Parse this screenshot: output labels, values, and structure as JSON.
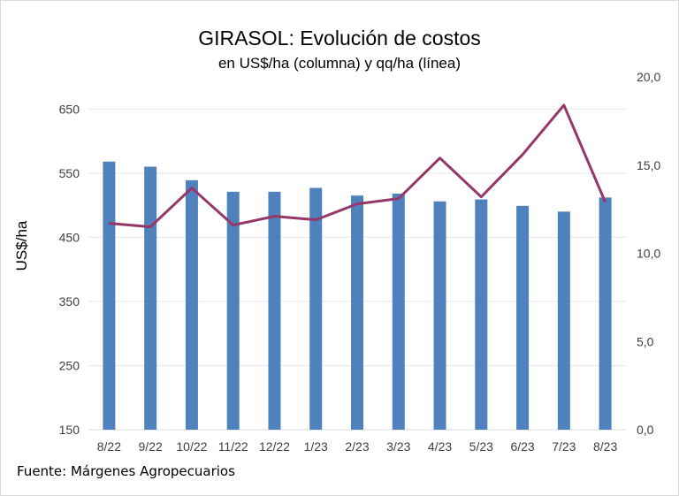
{
  "chart_data": {
    "type": "bar+line",
    "title": "GIRASOL: Evolución de costos",
    "subtitle": "en US$/ha (columna) y qq/ha (línea)",
    "ylabel": "US$/ha",
    "source": "Fuente: Márgenes Agropecuarios",
    "categories": [
      "8/22",
      "9/22",
      "10/22",
      "11/22",
      "12/22",
      "1/23",
      "2/23",
      "3/23",
      "4/23",
      "5/23",
      "6/23",
      "7/23",
      "8/23"
    ],
    "series": [
      {
        "type": "bar",
        "axis": "left",
        "values": [
          568,
          560,
          539,
          521,
          521,
          527,
          515,
          518,
          506,
          509,
          499,
          490,
          512
        ]
      },
      {
        "type": "line",
        "axis": "right",
        "values": [
          11.7,
          11.5,
          13.7,
          11.6,
          12.1,
          11.9,
          12.8,
          13.1,
          15.4,
          13.2,
          15.6,
          18.4,
          12.9
        ]
      }
    ],
    "y_left": {
      "min": 150,
      "max": 700,
      "ticks": [
        "150",
        "250",
        "350",
        "450",
        "550",
        "650"
      ],
      "tick_values": [
        150,
        250,
        350,
        450,
        550,
        650
      ]
    },
    "y_right": {
      "min": 0,
      "max": 20,
      "ticks": [
        "0,0",
        "5,0",
        "10,0",
        "15,0",
        "20,0"
      ],
      "tick_values": [
        0,
        5,
        10,
        15,
        20
      ]
    },
    "grid": true,
    "colors": {
      "bar": "#4f81bd",
      "line": "#953768",
      "grid": "#e7e7e7"
    }
  }
}
